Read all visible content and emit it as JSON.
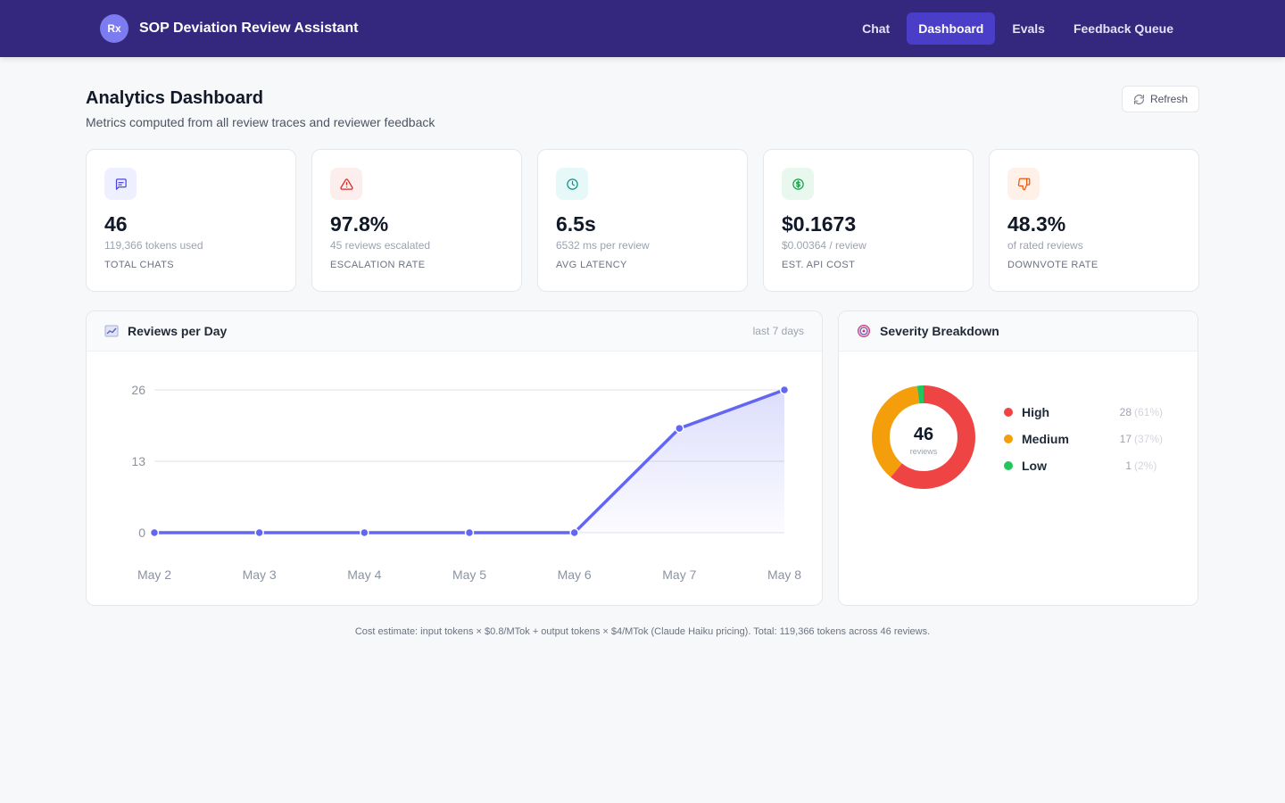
{
  "app": {
    "logo_text": "Rx",
    "title": "SOP Deviation Review Assistant"
  },
  "nav": [
    {
      "label": "Chat",
      "active": false
    },
    {
      "label": "Dashboard",
      "active": true
    },
    {
      "label": "Evals",
      "active": false
    },
    {
      "label": "Feedback Queue",
      "active": false
    }
  ],
  "page": {
    "title": "Analytics Dashboard",
    "subtitle": "Metrics computed from all review traces and reviewer feedback",
    "refresh_label": "Refresh"
  },
  "stats": [
    {
      "value": "46",
      "sub": "119,366 tokens used",
      "label": "TOTAL CHATS",
      "icon": "chat-bubble-icon",
      "color": "#4f46e5",
      "bg": "#eef0ff"
    },
    {
      "value": "97.8%",
      "sub": "45 reviews escalated",
      "label": "ESCALATION RATE",
      "icon": "warning-icon",
      "color": "#dc2626",
      "bg": "#fdeeee"
    },
    {
      "value": "6.5s",
      "sub": "6532 ms per review",
      "label": "AVG LATENCY",
      "icon": "clock-icon",
      "color": "#0d9488",
      "bg": "#e7f8f8"
    },
    {
      "value": "$0.1673",
      "sub": "$0.00364 / review",
      "label": "EST. API COST",
      "icon": "dollar-icon",
      "color": "#16a34a",
      "bg": "#e8f8ee"
    },
    {
      "value": "48.3%",
      "sub": "of rated reviews",
      "label": "DOWNVOTE RATE",
      "icon": "thumbs-down-icon",
      "color": "#ea580c",
      "bg": "#fff1e8"
    }
  ],
  "reviews_panel": {
    "title": "Reviews per Day",
    "note": "last 7 days",
    "icon": "chart-line-icon"
  },
  "severity_panel": {
    "title": "Severity Breakdown",
    "icon": "target-icon",
    "center_value": "46",
    "center_label": "reviews",
    "items": [
      {
        "name": "High",
        "count": "28",
        "pct": "(61%)",
        "value": 28,
        "color": "#ef4444"
      },
      {
        "name": "Medium",
        "count": "17",
        "pct": "(37%)",
        "value": 17,
        "color": "#f59e0b"
      },
      {
        "name": "Low",
        "count": "1",
        "pct": "(2%)",
        "value": 1,
        "color": "#22c55e"
      }
    ]
  },
  "chart_data": {
    "type": "line",
    "categories": [
      "May 2",
      "May 3",
      "May 4",
      "May 5",
      "May 6",
      "May 7",
      "May 8"
    ],
    "values": [
      0,
      0,
      0,
      0,
      0,
      19,
      26
    ],
    "yticks": [
      "0",
      "13",
      "26"
    ],
    "ylim": [
      0,
      26
    ],
    "grid": true,
    "color": "#6366f1",
    "title": "Reviews per Day",
    "xlabel": "",
    "ylabel": ""
  },
  "footer": {
    "note": "Cost estimate: input tokens × $0.8/MTok + output tokens × $4/MTok (Claude Haiku pricing). Total: 119,366 tokens across 46 reviews."
  }
}
